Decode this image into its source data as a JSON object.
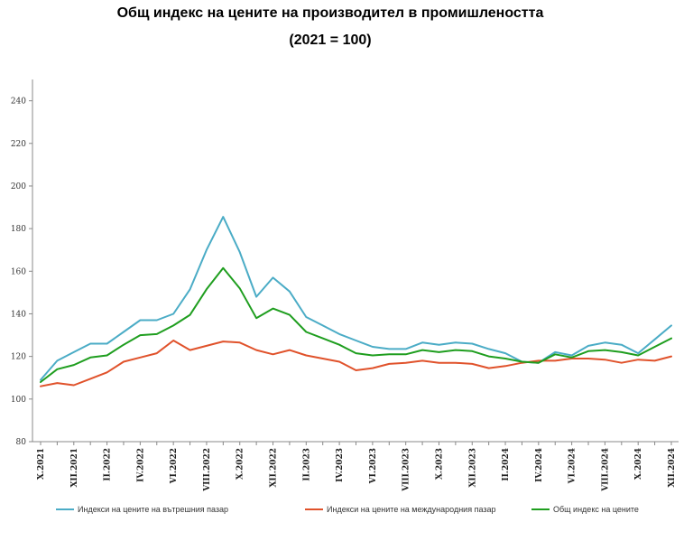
{
  "chart_data": {
    "type": "line",
    "title": "Общ индекс на цените на производител в промишлеността",
    "subtitle": "(2021 = 100)",
    "ylim": [
      80,
      250
    ],
    "yticks": [
      80,
      100,
      120,
      140,
      160,
      180,
      200,
      220,
      240
    ],
    "grid": false,
    "legend_position": "bottom",
    "x": [
      "X.2021",
      "XI.2021",
      "XII.2021",
      "I.2022",
      "II.2022",
      "III.2022",
      "IV.2022",
      "V.2022",
      "VI.2022",
      "VII.2022",
      "VIII.2022",
      "IX.2022",
      "X.2022",
      "XI.2022",
      "XII.2022",
      "I.2023",
      "II.2023",
      "III.2023",
      "IV.2023",
      "V.2023",
      "VI.2023",
      "VII.2023",
      "VIII.2023",
      "IX.2023",
      "X.2023",
      "XI.2023",
      "XII.2023",
      "I.2024",
      "II.2024",
      "III.2024",
      "IV.2024",
      "V.2024",
      "VI.2024",
      "VII.2024",
      "VIII.2024",
      "IX.2024",
      "X.2024",
      "XI.2024",
      "XII.2024"
    ],
    "xtick_labels": [
      "X.2021",
      "XII.2021",
      "II.2022",
      "IV.2022",
      "VI.2022",
      "VIII.2022",
      "X.2022",
      "XII.2022",
      "II.2023",
      "IV.2023",
      "VI.2023",
      "VIII.2023",
      "X.2023",
      "XII.2023",
      "II.2024",
      "IV.2024",
      "VI.2024",
      "VIII.2024",
      "X.2024",
      "XII.2024"
    ],
    "series": [
      {
        "name": "Индекси на цените на вътрешния пазар",
        "color": "#4bacc6",
        "values": [
          109,
          118,
          122,
          126,
          126,
          131.5,
          137,
          137,
          140,
          151.5,
          170,
          185.5,
          169,
          148,
          157,
          150.5,
          138.5,
          134.5,
          130.5,
          127.5,
          124.5,
          123.5,
          123.5,
          126.5,
          125.5,
          126.5,
          126,
          123.5,
          121.5,
          117.5,
          117,
          122,
          120.5,
          125,
          126.5,
          125.5,
          121.5,
          128,
          134.5
        ]
      },
      {
        "name": "Индекси на цените на международния пазар",
        "color": "#e0522b",
        "values": [
          106,
          107.5,
          106.5,
          109.5,
          112.5,
          117.5,
          119.5,
          121.5,
          127.5,
          123,
          125,
          127,
          126.5,
          123,
          121,
          123,
          120.5,
          119,
          117.5,
          113.5,
          114.5,
          116.5,
          117,
          118,
          117,
          117,
          116.5,
          114.5,
          115.5,
          117,
          118,
          118,
          119,
          119,
          118.5,
          117,
          118.5,
          118,
          120
        ]
      },
      {
        "name": "Общ индекс на цените",
        "color": "#1f9e1f",
        "values": [
          108,
          114,
          116,
          119.5,
          120.5,
          125.5,
          130,
          130.5,
          134.5,
          139.5,
          151.5,
          161.5,
          152,
          138,
          142.5,
          139.5,
          131.5,
          128.5,
          125.5,
          121.5,
          120.5,
          121,
          121,
          123,
          122,
          123,
          122.5,
          120,
          119,
          117.5,
          117,
          121,
          119.5,
          122.5,
          123,
          122,
          120.5,
          124.5,
          128.5
        ]
      }
    ]
  }
}
